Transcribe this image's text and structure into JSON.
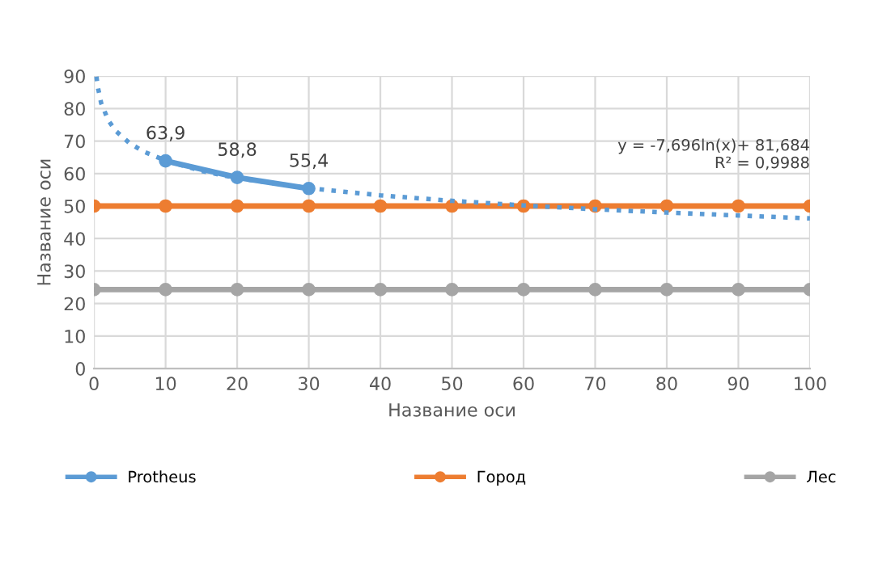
{
  "chart_data": {
    "type": "line",
    "xlabel": "Название оси",
    "ylabel": "Название оси",
    "xlim": [
      0,
      100
    ],
    "xticks": [
      0,
      10,
      20,
      30,
      40,
      50,
      60,
      70,
      80,
      90,
      100
    ],
    "ylim": [
      0,
      90
    ],
    "yticks": [
      0,
      10,
      20,
      30,
      40,
      50,
      60,
      70,
      80,
      90
    ],
    "grid": true,
    "legend": "bottom",
    "marker": "circle",
    "line_style": "solid",
    "annotations": [
      "y = -7,696ln(x)+ 81,684\nR² = 0,9988"
    ],
    "series": [
      {
        "name": "Protheus",
        "color": "#5b9bd5",
        "x": [
          10,
          20,
          30
        ],
        "values": [
          63.9,
          58.8,
          55.4
        ],
        "value_labels": [
          "63,9",
          "58,8",
          "55,4"
        ]
      },
      {
        "name": "Город",
        "color": "#ed7d31",
        "x": [
          0,
          10,
          20,
          30,
          40,
          50,
          60,
          70,
          80,
          90,
          100
        ],
        "values": [
          50,
          50,
          50,
          50,
          50,
          50,
          50,
          50,
          50,
          50,
          50
        ]
      },
      {
        "name": "Лес",
        "color": "#a5a5a5",
        "x": [
          0,
          10,
          20,
          30,
          40,
          50,
          60,
          70,
          80,
          90,
          100
        ],
        "values": [
          24.3,
          24.3,
          24.3,
          24.3,
          24.3,
          24.3,
          24.3,
          24.3,
          24.3,
          24.3,
          24.3
        ]
      },
      {
        "type": "line",
        "color": "#5b9bd5",
        "marker": "none",
        "line_style": "dotted",
        "x": [
          0.35,
          0.5,
          1,
          2,
          3,
          5,
          7,
          10,
          15,
          20,
          30,
          40,
          50,
          60,
          70,
          80,
          90,
          100
        ],
        "values": [
          89.8,
          87.0,
          81.7,
          76.4,
          73.2,
          69.3,
          66.7,
          64.0,
          60.8,
          58.6,
          55.5,
          53.3,
          51.6,
          50.2,
          49.0,
          48.0,
          47.1,
          46.2
        ]
      }
    ]
  }
}
